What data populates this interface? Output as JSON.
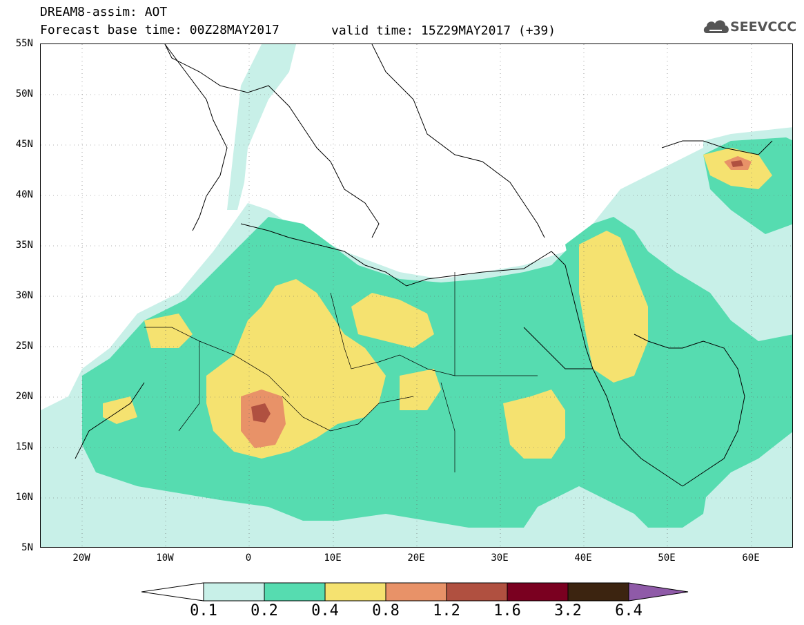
{
  "header": {
    "line1": "DREAM8-assim: AOT",
    "line2_left": "Forecast base time: 00Z28MAY2017",
    "line2_right": "valid time: 15Z29MAY2017 (+39)",
    "logo_text": "SEEVCCC"
  },
  "axes": {
    "lat_labels": [
      "55N",
      "50N",
      "45N",
      "40N",
      "35N",
      "30N",
      "25N",
      "20N",
      "15N",
      "10N",
      "5N"
    ],
    "lon_labels": [
      "20W",
      "10W",
      "0",
      "10E",
      "20E",
      "30E",
      "40E",
      "50E",
      "60E"
    ],
    "lat_range": [
      5,
      55
    ],
    "lon_range": [
      -25,
      65
    ]
  },
  "colorbar": {
    "labels": [
      "0.1",
      "0.2",
      "0.4",
      "0.8",
      "1.2",
      "1.6",
      "3.2",
      "6.4"
    ],
    "colors": [
      "#ffffff",
      "#c8f0e8",
      "#56dcb0",
      "#f5e270",
      "#e89268",
      "#b05040",
      "#7a0020",
      "#3c2410",
      "#8f5aa8"
    ]
  },
  "colors": {
    "low": "#c8f0e8",
    "mid": "#56dcb0",
    "high": "#f5e270",
    "higher": "#e89268",
    "highest": "#b05040"
  }
}
